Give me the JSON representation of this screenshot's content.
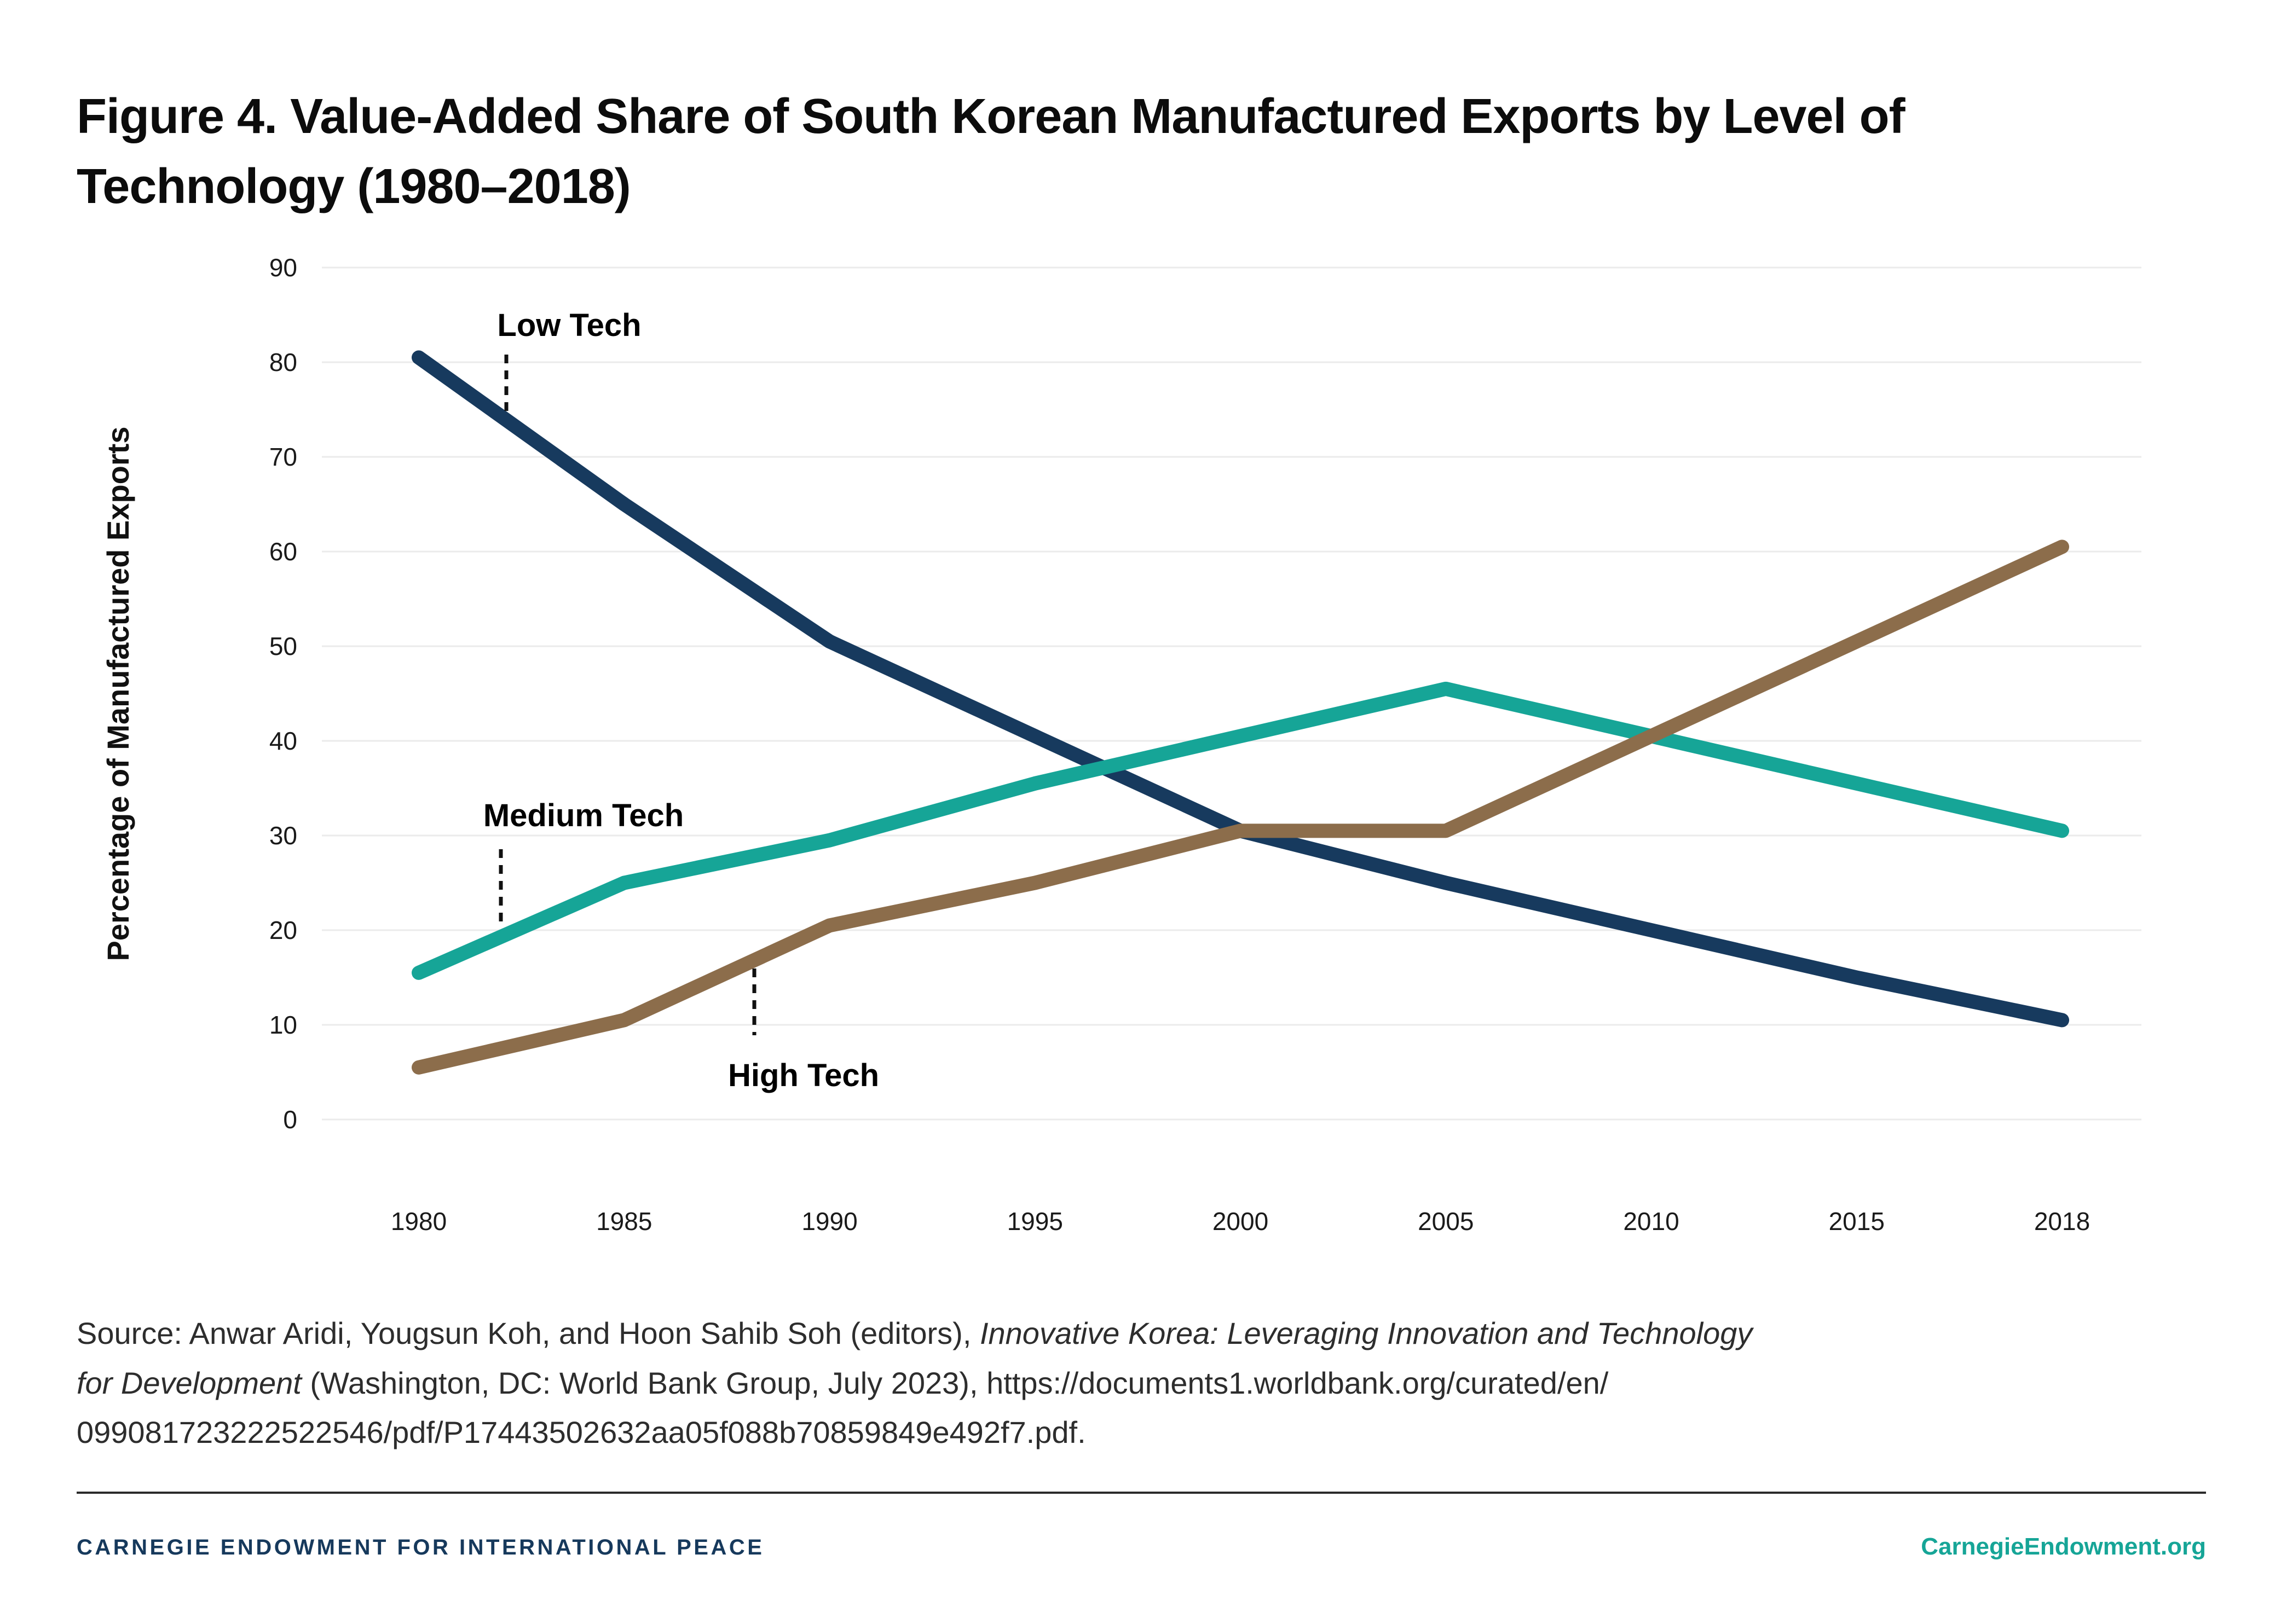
{
  "figure": {
    "title": "Figure 4. Value-Added Share of South Korean Manufactured Exports by Level of\nTechnology (1980–2018)"
  },
  "chart_data": {
    "type": "line",
    "title": "Figure 4. Value-Added Share of South Korean Manufactured Exports by Level of Technology (1980–2018)",
    "xlabel": "",
    "ylabel": "Percentage of Manufactured Exports",
    "ylim": [
      0,
      90
    ],
    "yticks": [
      90,
      80,
      70,
      60,
      50,
      40,
      30,
      20,
      10,
      0
    ],
    "grid": "horizontal",
    "legend_position": "inline-annotations",
    "categories": [
      "1980",
      "1985",
      "1990",
      "1995",
      "2000",
      "2005",
      "2010",
      "2015",
      "2018"
    ],
    "series": [
      {
        "name": "Low Tech",
        "color": "#173a5e",
        "values": [
          80.5,
          65,
          50.5,
          40.5,
          30.5,
          25,
          20,
          15,
          10.5
        ]
      },
      {
        "name": "Medium Tech",
        "color": "#16a597",
        "values": [
          15.5,
          25,
          29.5,
          35.5,
          40.5,
          45.5,
          40.5,
          35.5,
          30.5
        ]
      },
      {
        "name": "High Tech",
        "color": "#8c6d4b",
        "values": [
          5.5,
          10.5,
          20.5,
          25,
          30.5,
          30.5,
          40.5,
          50.5,
          60.5
        ]
      }
    ]
  },
  "source": {
    "prefix": "Source: Anwar Aridi, Yougsun Koh, and Hoon Sahib Soh (editors), ",
    "italic": "Innovative Korea: Leveraging Innovation and Technology\nfor Development",
    "suffix": " (Washington, DC: World Bank Group, July 2023), https://documents1.worldbank.org/curated/en/\n099081723222522546/pdf/P17443502632aa05f088b70859849e492f7.pdf."
  },
  "footer": {
    "org": "CARNEGIE ENDOWMENT FOR INTERNATIONAL PEACE",
    "site": "CarnegieEndowment.org"
  },
  "colors": {
    "low_tech": "#173a5e",
    "medium_tech": "#16a597",
    "high_tech": "#8c6d4b",
    "gridline": "#ebebeb",
    "tick_text": "#1a1a1a",
    "annotation_text": "#000000",
    "source_text": "#2d2d2d",
    "footer_navy": "#16395c",
    "footer_teal": "#16a597"
  }
}
